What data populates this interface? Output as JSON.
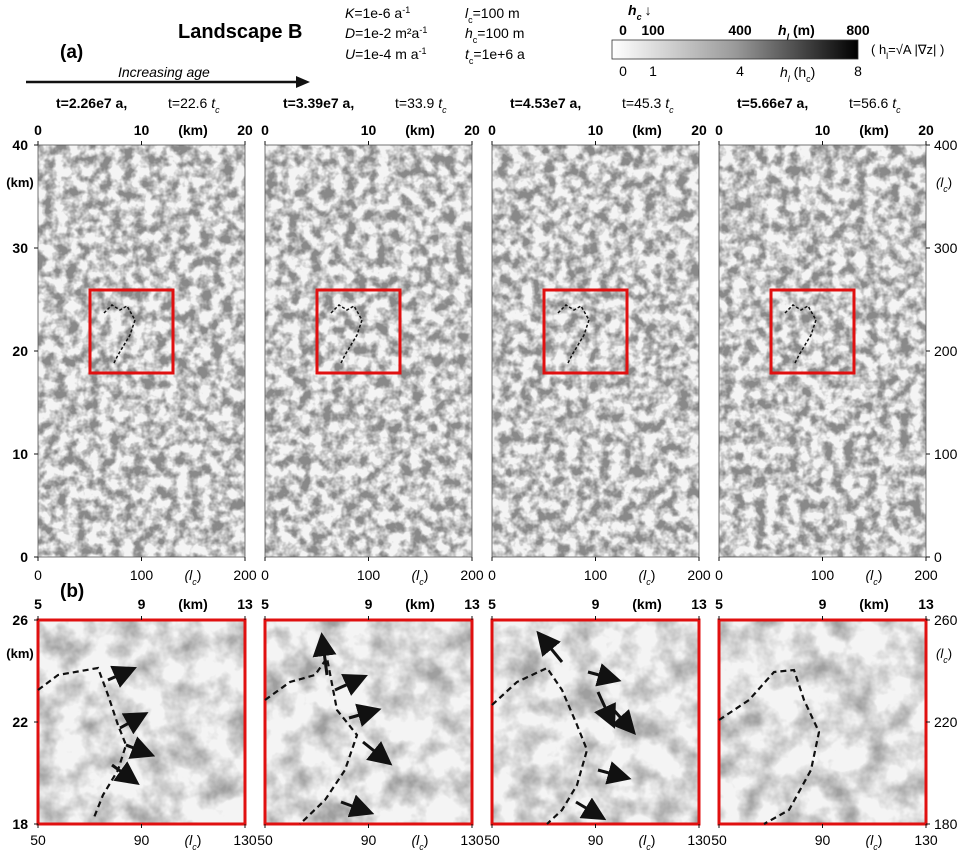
{
  "header": {
    "title": "Landscape B",
    "panel_a_label": "(a)",
    "panel_b_label": "(b)",
    "age_arrow_label": "Increasing age",
    "params": [
      {
        "name": "K",
        "value": "=1e-6 a",
        "sup": "-1"
      },
      {
        "name": "D",
        "value": "=1e-2 m²a",
        "sup": "-1"
      },
      {
        "name": "U",
        "value": "=1e-4 m a",
        "sup": "-1"
      },
      {
        "name": "l",
        "sub": "c",
        "value": "=100 m"
      },
      {
        "name": "h",
        "sub": "c",
        "value": "=100 m"
      },
      {
        "name": "t",
        "sub": "c",
        "value": "=1e+6 a"
      }
    ]
  },
  "colorbar": {
    "hc_label": "h",
    "hc_sub": "c",
    "hc_arrow": "↓",
    "top_ticks": [
      "0",
      "100",
      "400",
      "800"
    ],
    "top_label": "h",
    "top_label_sub": "l",
    "top_unit": " (m)",
    "bottom_ticks": [
      "0",
      "1",
      "4",
      "8"
    ],
    "bottom_label": "h",
    "bottom_label_sub": "l",
    "bottom_unit_open": " (h",
    "bottom_unit_sub": "c",
    "bottom_unit_close": ")",
    "formula": "( h",
    "formula_sub": "l",
    "formula_rest": "=√A |∇z| )"
  },
  "panels": [
    {
      "t_bold": "t=2.26e7 a,",
      "t_rel": "t=22.6",
      "t_rel_unit": "t",
      "t_rel_sub": "c"
    },
    {
      "t_bold": "t=3.39e7 a,",
      "t_rel": "t=33.9",
      "t_rel_unit": "t",
      "t_rel_sub": "c"
    },
    {
      "t_bold": "t=4.53e7 a,",
      "t_rel": "t=45.3",
      "t_rel_unit": "t",
      "t_rel_sub": "c"
    },
    {
      "t_bold": "t=5.66e7 a,",
      "t_rel": "t=56.6",
      "t_rel_unit": "t",
      "t_rel_sub": "c"
    }
  ],
  "axes_a": {
    "top_ticks": [
      "0",
      "10",
      "20"
    ],
    "top_unit": "(km)",
    "bottom_ticks": [
      "0",
      "100",
      "200"
    ],
    "bottom_unit": "(l",
    "bottom_unit_sub": "c",
    "left_ticks": [
      "0",
      "10",
      "20",
      "30",
      "40"
    ],
    "left_unit": "(km)",
    "right_ticks": [
      "0",
      "100",
      "200",
      "300",
      "400"
    ],
    "right_unit": "(l",
    "right_unit_sub": "c"
  },
  "axes_b": {
    "top_ticks": [
      "5",
      "9",
      "13"
    ],
    "top_unit": "(km)",
    "bottom_ticks": [
      "50",
      "90",
      "130"
    ],
    "bottom_unit": "(l",
    "bottom_unit_sub": "c",
    "left_ticks": [
      "18",
      "22",
      "26"
    ],
    "left_unit": "(km)",
    "right_ticks": [
      "180",
      "220",
      "260"
    ],
    "right_unit": "(l",
    "right_unit_sub": "c"
  },
  "colors": {
    "inset_box": "#e01010",
    "terrain_light": "#f4f4f4",
    "channel": "#3a3a3a"
  }
}
